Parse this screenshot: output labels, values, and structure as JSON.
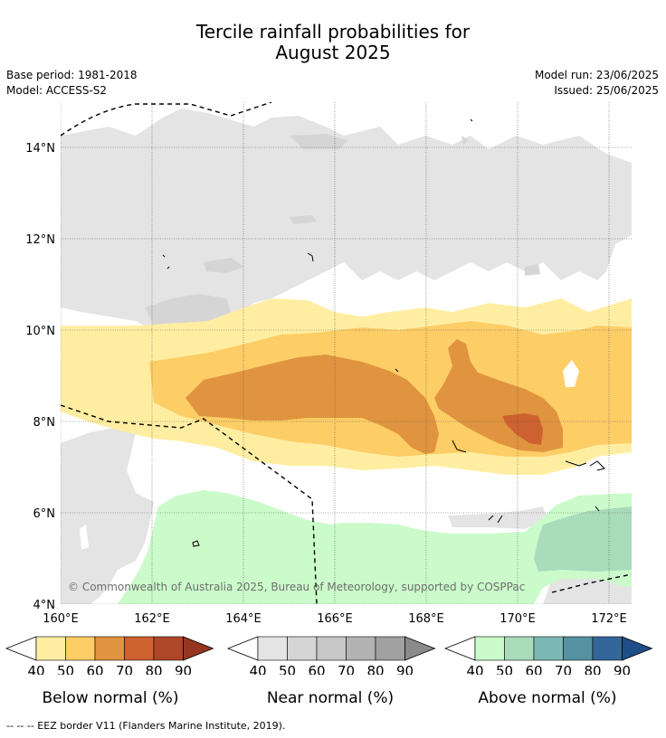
{
  "title_line1": "Tercile rainfall probabilities for",
  "title_line2": "August 2025",
  "base_period": "Base period: 1981-2018",
  "model": "Model: ACCESS-S2",
  "model_run": "Model run: 23/06/2025",
  "issued": "Issued: 25/06/2025",
  "copyright": "© Commonwealth of Australia 2025, Bureau of Meteorology, supported by COSPPac",
  "lon_ticks": [
    "160°E",
    "162°E",
    "164°E",
    "166°E",
    "168°E",
    "170°E",
    "172°E"
  ],
  "lat_ticks": [
    "14°N",
    "12°N",
    "10°N",
    "8°N",
    "6°N",
    "4°N"
  ],
  "colorbars": [
    {
      "title": "Below normal (%)",
      "ticks": [
        "40",
        "50",
        "60",
        "70",
        "80",
        "90"
      ],
      "colors": [
        "#ffeea2",
        "#fdcd66",
        "#e0943f",
        "#cd612f",
        "#b04628",
        "#973521"
      ]
    },
    {
      "title": "Near normal (%)",
      "ticks": [
        "40",
        "50",
        "60",
        "70",
        "80",
        "90"
      ],
      "colors": [
        "#e4e4e4",
        "#d5d5d5",
        "#c7c7c7",
        "#b3b3b3",
        "#a0a0a0",
        "#8a8a8a"
      ]
    },
    {
      "title": "Above normal (%)",
      "ticks": [
        "40",
        "50",
        "60",
        "70",
        "80",
        "90"
      ],
      "colors": [
        "#cbfbcb",
        "#a8dcbb",
        "#7eb8b4",
        "#5592a1",
        "#336699",
        "#1f4d87"
      ]
    }
  ],
  "footnote": "--  --  -- EEZ border V11 (Flanders Marine Institute, 2019)."
}
